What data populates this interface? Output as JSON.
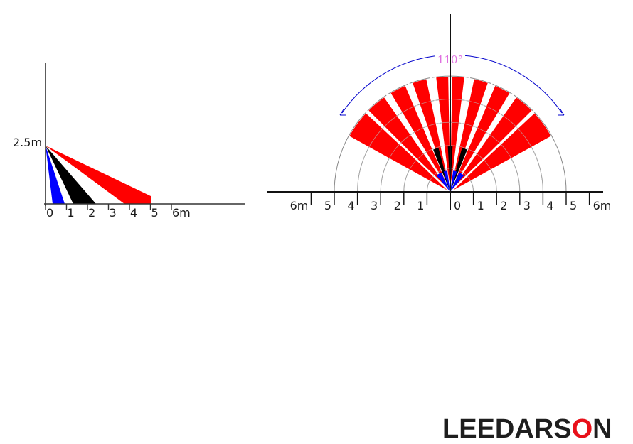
{
  "side_view": {
    "height_label": "2.5m",
    "distance_ticks": [
      "0",
      "1",
      "2",
      "3",
      "4",
      "5",
      "6m"
    ],
    "zone_colors": {
      "short": "#0000ff",
      "mid": "#000000",
      "long": "#ff0000"
    }
  },
  "top_view": {
    "angle_label": "110°",
    "left_ticks": [
      "6m",
      "5",
      "4",
      "3",
      "2",
      "1"
    ],
    "right_ticks": [
      "0",
      "1",
      "2",
      "3",
      "4",
      "5",
      "6m"
    ],
    "zone_colors": {
      "short": "#0000ff",
      "mid": "#000000",
      "long": "#ff0000"
    },
    "arc_color": "#0000cc"
  },
  "logo": {
    "prefix": "LEEDARS",
    "accent_letter": "O",
    "suffix": "N",
    "accent_color": "#e8101a"
  }
}
